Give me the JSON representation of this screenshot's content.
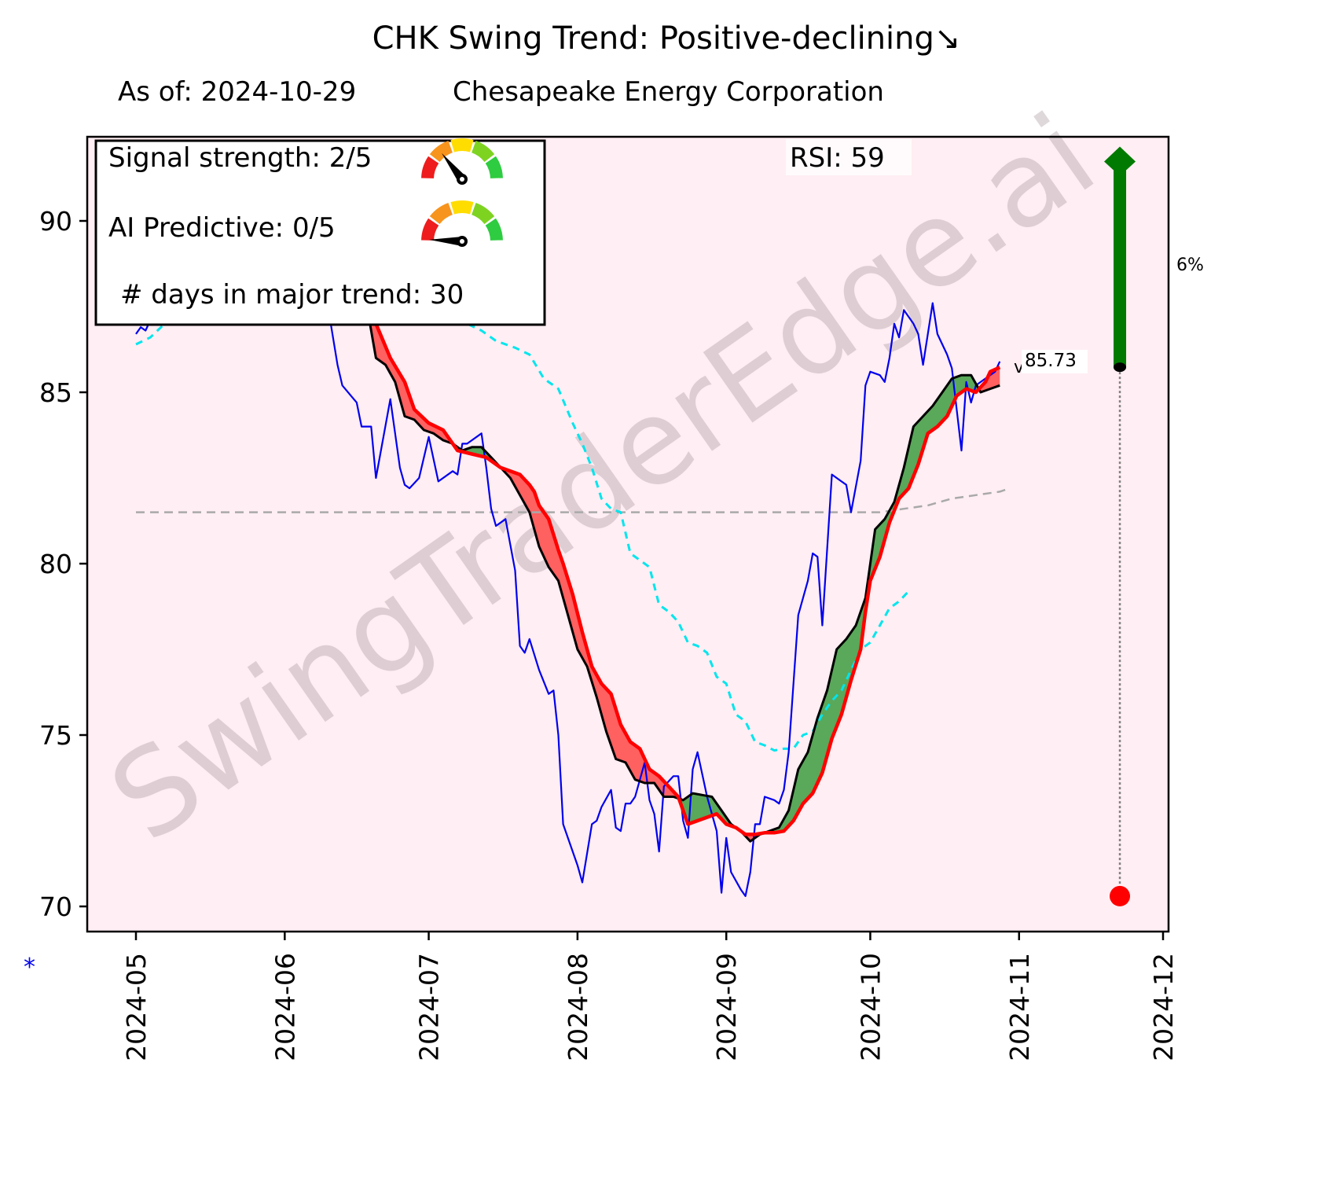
{
  "header": {
    "title": "CHK  Swing Trend: Positive-declining↘",
    "subtitle_date": "As of: 2024-10-29",
    "subtitle_company": "Chesapeake Energy Corporation"
  },
  "legend_box": {
    "signal_strength_label": "Signal strength: 2/5",
    "signal_strength_value": 2,
    "ai_predictive_label": "AI Predictive: 0/5",
    "ai_predictive_value": 0,
    "gauge_max": 5,
    "days_in_trend_label": "# days in major trend: 30"
  },
  "rsi_label": "RSI:  59",
  "watermark": "SwingTraderEdge.ai",
  "last_price_label": "85.73",
  "last_price_marker": "v",
  "target_pct_label": "6%",
  "footnote_marker": "*",
  "colors": {
    "plot_bg": "#ffeef3",
    "price": "#0000ee",
    "fast_ma": "#ff0000",
    "slow_ma": "#000000",
    "band": "#00e5ee",
    "baseline": "#a9a9a9",
    "fill_up": "#5aa85a",
    "fill_down": "#ff6060",
    "arrow": "#007a00",
    "stop": "#ff0000"
  },
  "chart_data": {
    "type": "line",
    "title": "CHK  Swing Trend: Positive-declining",
    "xlabel": "",
    "ylabel": "",
    "x_unit": "days since 2024-05-01",
    "xlim_dates": [
      "2024-04-21",
      "2024-12-02"
    ],
    "ylim": [
      69.3,
      92.8
    ],
    "grid": false,
    "x_ticks": [
      {
        "label": "2024-05",
        "day": 0
      },
      {
        "label": "2024-06",
        "day": 31
      },
      {
        "label": "2024-07",
        "day": 61
      },
      {
        "label": "2024-08",
        "day": 92
      },
      {
        "label": "2024-09",
        "day": 123
      },
      {
        "label": "2024-10",
        "day": 153
      },
      {
        "label": "2024-11",
        "day": 184
      },
      {
        "label": "2024-12",
        "day": 214
      }
    ],
    "y_ticks": [
      70,
      75,
      80,
      85,
      90
    ],
    "series": [
      {
        "name": "price",
        "style": "solid-thin",
        "points": [
          [
            0,
            86.7
          ],
          [
            1,
            86.9
          ],
          [
            2,
            86.8
          ],
          [
            3,
            87.1
          ],
          [
            40,
            87.5
          ],
          [
            42,
            85.8
          ],
          [
            43,
            85.2
          ],
          [
            46,
            84.7
          ],
          [
            47,
            84.0
          ],
          [
            49,
            84.0
          ],
          [
            50,
            82.5
          ],
          [
            53,
            84.8
          ],
          [
            55,
            82.8
          ],
          [
            56,
            82.3
          ],
          [
            57,
            82.2
          ],
          [
            59,
            82.5
          ],
          [
            61,
            83.7
          ],
          [
            63,
            82.4
          ],
          [
            66,
            82.7
          ],
          [
            67,
            82.6
          ],
          [
            68,
            83.5
          ],
          [
            69,
            83.5
          ],
          [
            72,
            83.8
          ],
          [
            73,
            82.8
          ],
          [
            74,
            81.6
          ],
          [
            75,
            81.1
          ],
          [
            77,
            81.3
          ],
          [
            79,
            79.8
          ],
          [
            80,
            77.6
          ],
          [
            81,
            77.4
          ],
          [
            82,
            77.8
          ],
          [
            84,
            76.9
          ],
          [
            86,
            76.2
          ],
          [
            87,
            76.3
          ],
          [
            88,
            75.0
          ],
          [
            89,
            72.4
          ],
          [
            92,
            71.2
          ],
          [
            93,
            70.7
          ],
          [
            95,
            72.4
          ],
          [
            96,
            72.5
          ],
          [
            97,
            72.9
          ],
          [
            99,
            73.4
          ],
          [
            100,
            72.3
          ],
          [
            101,
            72.2
          ],
          [
            102,
            73.0
          ],
          [
            103,
            73.0
          ],
          [
            104,
            73.2
          ],
          [
            106,
            74.2
          ],
          [
            107,
            73.1
          ],
          [
            108,
            72.7
          ],
          [
            109,
            71.6
          ],
          [
            110,
            73.5
          ],
          [
            112,
            73.8
          ],
          [
            113,
            73.8
          ],
          [
            114,
            72.5
          ],
          [
            115,
            72.0
          ],
          [
            116,
            74.0
          ],
          [
            117,
            74.5
          ],
          [
            119,
            73.2
          ],
          [
            121,
            72.2
          ],
          [
            122,
            70.4
          ],
          [
            123,
            72.0
          ],
          [
            124,
            71.0
          ],
          [
            126,
            70.5
          ],
          [
            127,
            70.3
          ],
          [
            128,
            71.0
          ],
          [
            129,
            72.4
          ],
          [
            130,
            72.4
          ],
          [
            131,
            73.2
          ],
          [
            133,
            73.1
          ],
          [
            134,
            73.0
          ],
          [
            135,
            73.4
          ],
          [
            136,
            74.5
          ],
          [
            138,
            78.5
          ],
          [
            140,
            79.5
          ],
          [
            141,
            80.3
          ],
          [
            142,
            80.2
          ],
          [
            143,
            78.2
          ],
          [
            145,
            82.6
          ],
          [
            147,
            82.4
          ],
          [
            148,
            82.3
          ],
          [
            149,
            81.5
          ],
          [
            151,
            83.0
          ],
          [
            152,
            85.2
          ],
          [
            153,
            85.6
          ],
          [
            155,
            85.5
          ],
          [
            156,
            85.3
          ],
          [
            157,
            86.0
          ],
          [
            158,
            87.0
          ],
          [
            159,
            86.6
          ],
          [
            160,
            87.4
          ],
          [
            162,
            87.0
          ],
          [
            163,
            86.7
          ],
          [
            164,
            85.8
          ],
          [
            166,
            87.6
          ],
          [
            167,
            86.7
          ],
          [
            169,
            86.1
          ],
          [
            170,
            85.7
          ],
          [
            171,
            84.5
          ],
          [
            172,
            83.3
          ],
          [
            173,
            85.3
          ],
          [
            174,
            84.7
          ],
          [
            175,
            85.2
          ],
          [
            176,
            85.3
          ],
          [
            179,
            85.6
          ],
          [
            180,
            85.9
          ]
        ]
      },
      {
        "name": "fast_ma",
        "style": "solid-thick",
        "points": [
          [
            46,
            88.5
          ],
          [
            50,
            87.0
          ],
          [
            53,
            86.0
          ],
          [
            56,
            85.3
          ],
          [
            58,
            84.5
          ],
          [
            61,
            84.1
          ],
          [
            64,
            83.9
          ],
          [
            67,
            83.3
          ],
          [
            70,
            83.2
          ],
          [
            73,
            83.1
          ],
          [
            76,
            82.8
          ],
          [
            78,
            82.7
          ],
          [
            80,
            82.6
          ],
          [
            82,
            82.3
          ],
          [
            83,
            82.1
          ],
          [
            84,
            81.7
          ],
          [
            86,
            81.3
          ],
          [
            88,
            80.4
          ],
          [
            89,
            80.0
          ],
          [
            91,
            79.1
          ],
          [
            93,
            78.0
          ],
          [
            95,
            77.0
          ],
          [
            97,
            76.5
          ],
          [
            99,
            76.2
          ],
          [
            101,
            75.3
          ],
          [
            103,
            74.8
          ],
          [
            105,
            74.6
          ],
          [
            107,
            74.0
          ],
          [
            109,
            73.8
          ],
          [
            111,
            73.5
          ],
          [
            113,
            73.2
          ],
          [
            115,
            72.4
          ],
          [
            117,
            72.5
          ],
          [
            119,
            72.6
          ],
          [
            121,
            72.7
          ],
          [
            123,
            72.4
          ],
          [
            125,
            72.3
          ],
          [
            127,
            72.1
          ],
          [
            129,
            72.1
          ],
          [
            131,
            72.15
          ],
          [
            133,
            72.15
          ],
          [
            135,
            72.2
          ],
          [
            137,
            72.5
          ],
          [
            139,
            73.0
          ],
          [
            141,
            73.3
          ],
          [
            143,
            73.9
          ],
          [
            145,
            74.9
          ],
          [
            147,
            75.6
          ],
          [
            149,
            76.6
          ],
          [
            151,
            77.5
          ],
          [
            152,
            78.6
          ],
          [
            153,
            79.5
          ],
          [
            155,
            80.2
          ],
          [
            157,
            81.2
          ],
          [
            159,
            81.9
          ],
          [
            161,
            82.2
          ],
          [
            163,
            82.9
          ],
          [
            165,
            83.8
          ],
          [
            167,
            84.0
          ],
          [
            169,
            84.3
          ],
          [
            171,
            84.9
          ],
          [
            173,
            85.1
          ],
          [
            175,
            85.0
          ],
          [
            177,
            85.3
          ],
          [
            178,
            85.6
          ],
          [
            180,
            85.73
          ]
        ]
      },
      {
        "name": "slow_ma",
        "style": "solid-medium",
        "points": [
          [
            46,
            88.2
          ],
          [
            48,
            87.6
          ],
          [
            50,
            86.0
          ],
          [
            52,
            85.8
          ],
          [
            54,
            85.3
          ],
          [
            56,
            84.3
          ],
          [
            58,
            84.2
          ],
          [
            60,
            83.9
          ],
          [
            62,
            83.8
          ],
          [
            64,
            83.6
          ],
          [
            66,
            83.5
          ],
          [
            68,
            83.3
          ],
          [
            70,
            83.4
          ],
          [
            72,
            83.4
          ],
          [
            74,
            83.1
          ],
          [
            76,
            82.8
          ],
          [
            78,
            82.5
          ],
          [
            80,
            82.0
          ],
          [
            82,
            81.5
          ],
          [
            84,
            80.5
          ],
          [
            86,
            79.9
          ],
          [
            88,
            79.5
          ],
          [
            90,
            78.5
          ],
          [
            92,
            77.5
          ],
          [
            94,
            77.0
          ],
          [
            96,
            76.1
          ],
          [
            98,
            75.1
          ],
          [
            100,
            74.3
          ],
          [
            102,
            74.2
          ],
          [
            104,
            73.7
          ],
          [
            106,
            73.6
          ],
          [
            108,
            73.6
          ],
          [
            110,
            73.2
          ],
          [
            112,
            73.2
          ],
          [
            114,
            73.1
          ],
          [
            116,
            73.3
          ],
          [
            118,
            73.25
          ],
          [
            120,
            73.2
          ],
          [
            122,
            72.8
          ],
          [
            124,
            72.4
          ],
          [
            126,
            72.2
          ],
          [
            128,
            71.9
          ],
          [
            130,
            72.1
          ],
          [
            132,
            72.2
          ],
          [
            134,
            72.3
          ],
          [
            136,
            72.8
          ],
          [
            138,
            74.0
          ],
          [
            140,
            74.5
          ],
          [
            142,
            75.5
          ],
          [
            144,
            76.3
          ],
          [
            146,
            77.5
          ],
          [
            148,
            77.8
          ],
          [
            150,
            78.2
          ],
          [
            152,
            79.0
          ],
          [
            154,
            81.0
          ],
          [
            156,
            81.3
          ],
          [
            158,
            81.8
          ],
          [
            160,
            82.8
          ],
          [
            162,
            84.0
          ],
          [
            164,
            84.3
          ],
          [
            166,
            84.6
          ],
          [
            168,
            85.0
          ],
          [
            170,
            85.4
          ],
          [
            172,
            85.5
          ],
          [
            174,
            85.5
          ],
          [
            176,
            85.0
          ],
          [
            178,
            85.1
          ],
          [
            180,
            85.2
          ]
        ]
      },
      {
        "name": "band",
        "style": "dashed-cyan",
        "points": [
          [
            0,
            86.4
          ],
          [
            3,
            86.6
          ],
          [
            6,
            87.0
          ],
          [
            69,
            87.0
          ],
          [
            72,
            86.8
          ],
          [
            75,
            86.5
          ],
          [
            79,
            86.3
          ],
          [
            82,
            86.1
          ],
          [
            85,
            85.4
          ],
          [
            88,
            85.1
          ],
          [
            91,
            84.1
          ],
          [
            93,
            83.5
          ],
          [
            95,
            82.8
          ],
          [
            97,
            81.9
          ],
          [
            99,
            81.6
          ],
          [
            101,
            81.5
          ],
          [
            103,
            80.3
          ],
          [
            105,
            80.1
          ],
          [
            107,
            79.9
          ],
          [
            109,
            78.8
          ],
          [
            111,
            78.6
          ],
          [
            113,
            78.3
          ],
          [
            115,
            77.7
          ],
          [
            117,
            77.6
          ],
          [
            119,
            77.4
          ],
          [
            121,
            76.7
          ],
          [
            123,
            76.5
          ],
          [
            125,
            75.6
          ],
          [
            127,
            75.4
          ],
          [
            129,
            74.8
          ],
          [
            131,
            74.7
          ],
          [
            133,
            74.55
          ],
          [
            135,
            74.6
          ],
          [
            137,
            74.6
          ],
          [
            139,
            75.0
          ],
          [
            141,
            75.1
          ],
          [
            143,
            75.6
          ],
          [
            145,
            76.0
          ],
          [
            147,
            76.3
          ],
          [
            149,
            76.9
          ],
          [
            151,
            77.5
          ],
          [
            153,
            77.7
          ],
          [
            155,
            78.2
          ],
          [
            157,
            78.7
          ],
          [
            159,
            78.9
          ],
          [
            161,
            79.2
          ]
        ]
      },
      {
        "name": "baseline",
        "style": "dashed-gray",
        "points": [
          [
            0,
            81.5
          ],
          [
            155,
            81.5
          ],
          [
            160,
            81.6
          ],
          [
            165,
            81.7
          ],
          [
            170,
            81.9
          ],
          [
            175,
            82.0
          ],
          [
            180,
            82.1
          ],
          [
            182,
            82.2
          ]
        ]
      }
    ],
    "annotations": {
      "last_price": {
        "day": 181,
        "value": 85.73,
        "label": "85.73"
      },
      "target_arrow": {
        "day": 205,
        "from": 85.73,
        "to": 91.8,
        "label": "6%"
      },
      "stop_marker": {
        "day": 205,
        "value": 70.3
      },
      "rsi": 59
    }
  }
}
